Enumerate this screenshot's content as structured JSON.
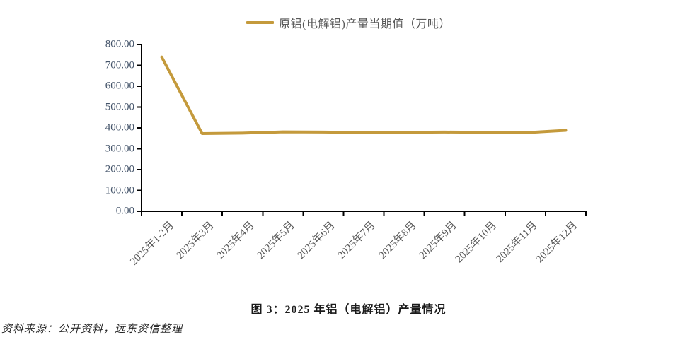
{
  "legend": {
    "label": "原铝(电解铝)产量当期值（万吨）"
  },
  "chart_data": {
    "type": "line",
    "title": "",
    "categories": [
      "2025年1-2月",
      "2025年3月",
      "2025年4月",
      "2025年5月",
      "2025年6月",
      "2025年7月",
      "2025年8月",
      "2025年9月",
      "2025年10月",
      "2025年11月",
      "2025年12月"
    ],
    "series": [
      {
        "name": "原铝(电解铝)产量当期值（万吨）",
        "values": [
          740,
          373,
          375,
          381,
          380,
          378,
          379,
          380,
          379,
          377,
          388
        ]
      }
    ],
    "xlabel": "",
    "ylabel": "",
    "ylim": [
      0,
      800
    ],
    "ytick_step": 100,
    "yticks": [
      "800.00",
      "700.00",
      "600.00",
      "500.00",
      "400.00",
      "300.00",
      "200.00",
      "100.00",
      "0.00"
    ],
    "grid": false,
    "legend_position": "top-center",
    "line_color": "#C49A3C",
    "axis_color": "#000000",
    "axis_label_color": "#44546A"
  },
  "caption": {
    "title": "图 3：2025 年铝（电解铝）产量情况"
  },
  "source": {
    "text": "资料来源：公开资料，远东资信整理"
  }
}
